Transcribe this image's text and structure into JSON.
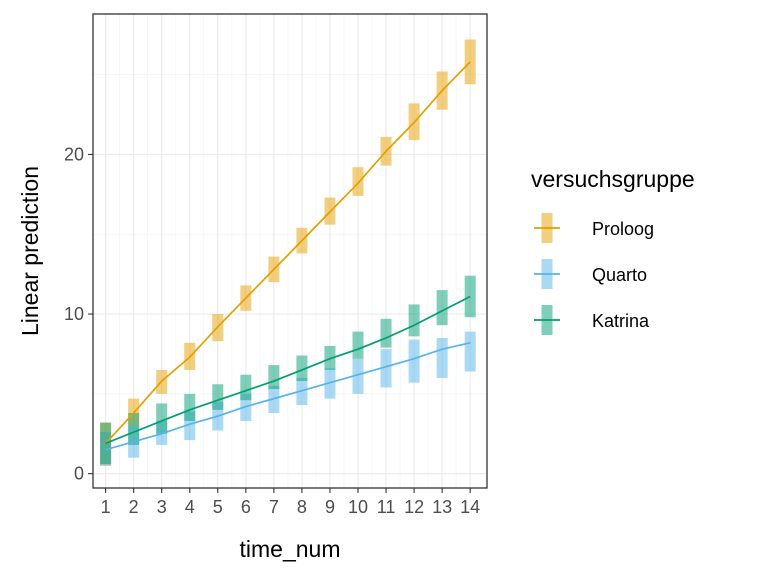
{
  "chart_data": {
    "type": "line",
    "xlabel": "time_num",
    "ylabel": "Linear prediction",
    "x": [
      1,
      2,
      3,
      4,
      5,
      6,
      7,
      8,
      9,
      10,
      11,
      12,
      13,
      14
    ],
    "xlim": [
      0.55,
      14.6
    ],
    "ylim": [
      -0.9,
      28.8
    ],
    "yticks": [
      0,
      10,
      20
    ],
    "xticks": [
      1,
      2,
      3,
      4,
      5,
      6,
      7,
      8,
      9,
      10,
      11,
      12,
      13,
      14
    ],
    "grid": true,
    "legend_title": "versuchsgruppe",
    "legend_position": "right",
    "series": [
      {
        "name": "Proloog",
        "color": "#E69F00",
        "values": [
          1.9,
          3.8,
          5.8,
          7.3,
          9.2,
          11.0,
          12.8,
          14.6,
          16.4,
          18.2,
          20.2,
          22.0,
          24.0,
          25.8
        ],
        "lower": [
          0.5,
          3.0,
          5.0,
          6.5,
          8.3,
          10.2,
          12.0,
          13.8,
          15.6,
          17.4,
          19.3,
          20.9,
          22.8,
          24.4
        ],
        "upper": [
          3.2,
          4.7,
          6.5,
          8.2,
          10.0,
          11.8,
          13.6,
          15.4,
          17.3,
          19.2,
          21.1,
          23.2,
          25.2,
          27.2
        ]
      },
      {
        "name": "Quarto",
        "color": "#56B4E9",
        "values": [
          1.5,
          2.0,
          2.5,
          3.1,
          3.6,
          4.2,
          4.7,
          5.2,
          5.7,
          6.2,
          6.7,
          7.2,
          7.8,
          8.2
        ],
        "lower": [
          0.5,
          1.0,
          1.8,
          2.1,
          2.7,
          3.3,
          3.8,
          4.3,
          4.7,
          5.0,
          5.4,
          5.7,
          6.0,
          6.4
        ],
        "upper": [
          2.6,
          3.0,
          3.3,
          3.9,
          4.5,
          5.0,
          5.5,
          6.0,
          6.6,
          7.2,
          7.8,
          8.4,
          8.5,
          8.9
        ]
      },
      {
        "name": "Katrina",
        "color": "#009E73",
        "values": [
          1.9,
          2.6,
          3.3,
          4.0,
          4.6,
          5.2,
          5.8,
          6.5,
          7.2,
          7.8,
          8.5,
          9.3,
          10.2,
          11.1
        ],
        "lower": [
          0.6,
          1.8,
          2.5,
          3.3,
          4.0,
          4.6,
          5.3,
          5.8,
          6.5,
          7.2,
          7.9,
          8.6,
          9.3,
          9.8
        ],
        "upper": [
          3.2,
          3.8,
          4.4,
          5.0,
          5.6,
          6.2,
          6.8,
          7.4,
          8.0,
          8.9,
          9.7,
          10.6,
          11.5,
          12.4
        ]
      }
    ]
  }
}
